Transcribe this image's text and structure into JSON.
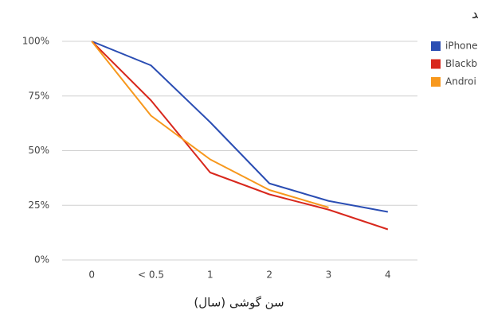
{
  "chart_data": {
    "type": "line",
    "title": "مقایسه روند کاهش قیمت گوشی های آیفون، بلک بری و آندروید",
    "x_label": "سن گوشی (سال)",
    "categories": [
      "0",
      "< 0.5",
      "1",
      "2",
      "3",
      "4"
    ],
    "series": [
      {
        "name": "iPhone",
        "color": "#2a4db3",
        "values": [
          100,
          89,
          63,
          35,
          27,
          22
        ]
      },
      {
        "name": "Blackb",
        "color": "#d8281d",
        "values": [
          100,
          73,
          40,
          30,
          23,
          14
        ]
      },
      {
        "name": "Androi",
        "color": "#f7981d",
        "values": [
          100,
          66,
          46,
          32,
          24,
          null
        ]
      }
    ],
    "ylim": [
      0,
      100
    ],
    "yticks": [
      {
        "value": 0,
        "label": "0%"
      },
      {
        "value": 25,
        "label": "25%"
      },
      {
        "value": 50,
        "label": "50%"
      },
      {
        "value": 75,
        "label": "75%"
      },
      {
        "value": 100,
        "label": "100%"
      }
    ],
    "grid": true
  }
}
